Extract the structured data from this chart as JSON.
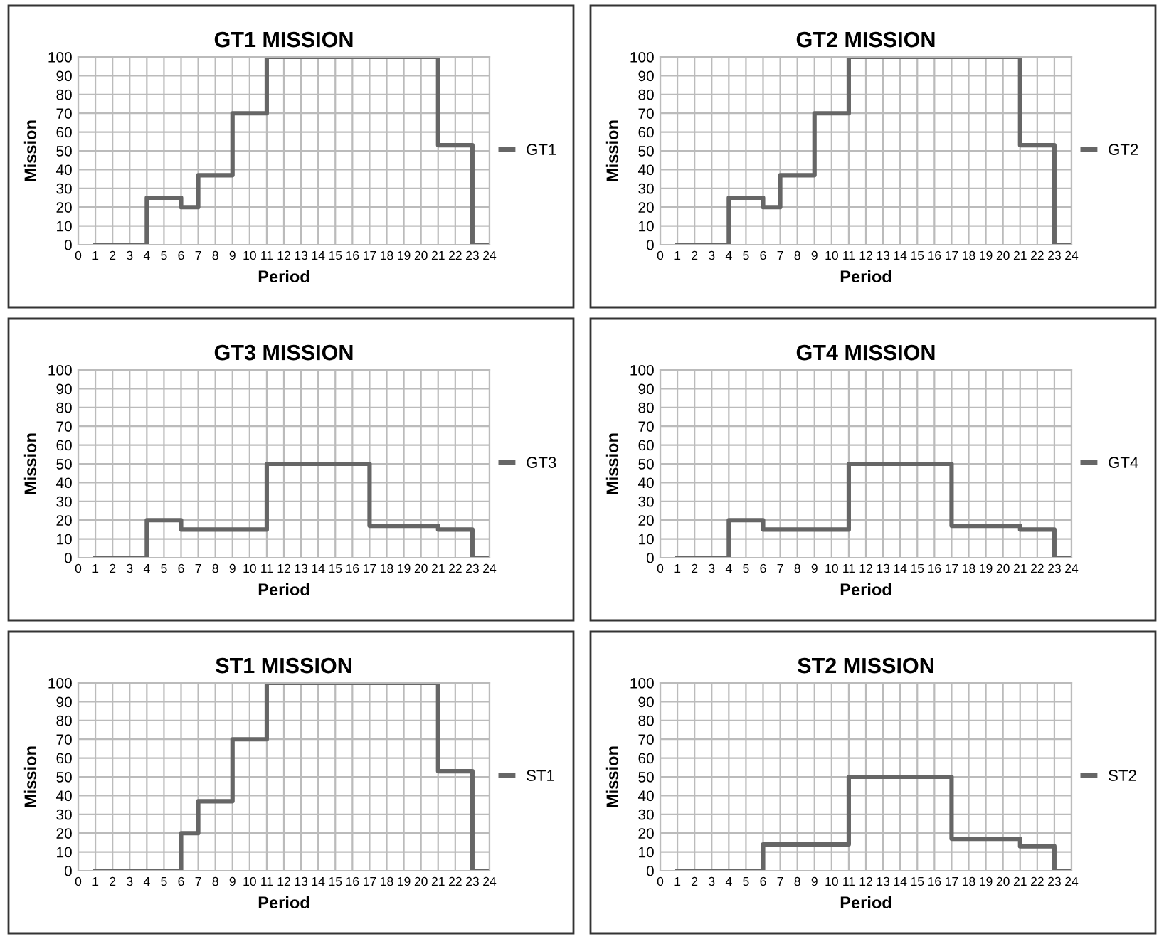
{
  "chart_data": [
    {
      "type": "step",
      "title": "GT1 MISSION",
      "xlabel": "Period",
      "ylabel": "Mission",
      "xlim": [
        0,
        24
      ],
      "xticks": [
        0,
        1,
        2,
        3,
        4,
        5,
        6,
        7,
        8,
        9,
        10,
        11,
        12,
        13,
        14,
        15,
        16,
        17,
        18,
        19,
        20,
        21,
        22,
        23,
        24
      ],
      "ylim": [
        0,
        100
      ],
      "yticks": [
        0,
        10,
        20,
        30,
        40,
        50,
        60,
        70,
        80,
        90,
        100
      ],
      "grid": true,
      "legend": "right",
      "x": [
        1,
        2,
        3,
        4,
        5,
        6,
        7,
        8,
        9,
        10,
        11,
        12,
        13,
        14,
        15,
        16,
        17,
        18,
        19,
        20,
        21,
        22,
        23,
        24
      ],
      "series": [
        {
          "name": "GT1",
          "color": "#666666",
          "values": [
            0,
            0,
            0,
            25,
            25,
            20,
            37,
            37,
            70,
            70,
            100,
            100,
            100,
            100,
            100,
            100,
            100,
            100,
            100,
            100,
            53,
            53,
            0,
            0
          ]
        }
      ]
    },
    {
      "type": "step",
      "title": "GT2 MISSION",
      "xlabel": "Period",
      "ylabel": "Mission",
      "xlim": [
        0,
        24
      ],
      "xticks": [
        0,
        1,
        2,
        3,
        4,
        5,
        6,
        7,
        8,
        9,
        10,
        11,
        12,
        13,
        14,
        15,
        16,
        17,
        18,
        19,
        20,
        21,
        22,
        23,
        24
      ],
      "ylim": [
        0,
        100
      ],
      "yticks": [
        0,
        10,
        20,
        30,
        40,
        50,
        60,
        70,
        80,
        90,
        100
      ],
      "grid": true,
      "legend": "right",
      "x": [
        1,
        2,
        3,
        4,
        5,
        6,
        7,
        8,
        9,
        10,
        11,
        12,
        13,
        14,
        15,
        16,
        17,
        18,
        19,
        20,
        21,
        22,
        23,
        24
      ],
      "series": [
        {
          "name": "GT2",
          "color": "#666666",
          "values": [
            0,
            0,
            0,
            25,
            25,
            20,
            37,
            37,
            70,
            70,
            100,
            100,
            100,
            100,
            100,
            100,
            100,
            100,
            100,
            100,
            53,
            53,
            0,
            0
          ]
        }
      ]
    },
    {
      "type": "step",
      "title": "GT3 MISSION",
      "xlabel": "Period",
      "ylabel": "Mission",
      "xlim": [
        0,
        24
      ],
      "xticks": [
        0,
        1,
        2,
        3,
        4,
        5,
        6,
        7,
        8,
        9,
        10,
        11,
        12,
        13,
        14,
        15,
        16,
        17,
        18,
        19,
        20,
        21,
        22,
        23,
        24
      ],
      "ylim": [
        0,
        100
      ],
      "yticks": [
        0,
        10,
        20,
        30,
        40,
        50,
        60,
        70,
        80,
        90,
        100
      ],
      "grid": true,
      "legend": "right",
      "x": [
        1,
        2,
        3,
        4,
        5,
        6,
        7,
        8,
        9,
        10,
        11,
        12,
        13,
        14,
        15,
        16,
        17,
        18,
        19,
        20,
        21,
        22,
        23,
        24
      ],
      "series": [
        {
          "name": "GT3",
          "color": "#666666",
          "values": [
            0,
            0,
            0,
            20,
            20,
            15,
            15,
            15,
            15,
            15,
            50,
            50,
            50,
            50,
            50,
            50,
            17,
            17,
            17,
            17,
            15,
            15,
            0,
            0
          ]
        }
      ]
    },
    {
      "type": "step",
      "title": "GT4 MISSION",
      "xlabel": "Period",
      "ylabel": "Mission",
      "xlim": [
        0,
        24
      ],
      "xticks": [
        0,
        1,
        2,
        3,
        4,
        5,
        6,
        7,
        8,
        9,
        10,
        11,
        12,
        13,
        14,
        15,
        16,
        17,
        18,
        19,
        20,
        21,
        22,
        23,
        24
      ],
      "ylim": [
        0,
        100
      ],
      "yticks": [
        0,
        10,
        20,
        30,
        40,
        50,
        60,
        70,
        80,
        90,
        100
      ],
      "grid": true,
      "legend": "right",
      "x": [
        1,
        2,
        3,
        4,
        5,
        6,
        7,
        8,
        9,
        10,
        11,
        12,
        13,
        14,
        15,
        16,
        17,
        18,
        19,
        20,
        21,
        22,
        23,
        24
      ],
      "series": [
        {
          "name": "GT4",
          "color": "#666666",
          "values": [
            0,
            0,
            0,
            20,
            20,
            15,
            15,
            15,
            15,
            15,
            50,
            50,
            50,
            50,
            50,
            50,
            17,
            17,
            17,
            17,
            15,
            15,
            0,
            0
          ]
        }
      ]
    },
    {
      "type": "step",
      "title": "ST1 MISSION",
      "xlabel": "Period",
      "ylabel": "Mission",
      "xlim": [
        0,
        24
      ],
      "xticks": [
        0,
        1,
        2,
        3,
        4,
        5,
        6,
        7,
        8,
        9,
        10,
        11,
        12,
        13,
        14,
        15,
        16,
        17,
        18,
        19,
        20,
        21,
        22,
        23,
        24
      ],
      "ylim": [
        0,
        100
      ],
      "yticks": [
        0,
        10,
        20,
        30,
        40,
        50,
        60,
        70,
        80,
        90,
        100
      ],
      "grid": true,
      "legend": "right",
      "x": [
        1,
        2,
        3,
        4,
        5,
        6,
        7,
        8,
        9,
        10,
        11,
        12,
        13,
        14,
        15,
        16,
        17,
        18,
        19,
        20,
        21,
        22,
        23,
        24
      ],
      "series": [
        {
          "name": "ST1",
          "color": "#666666",
          "values": [
            0,
            0,
            0,
            0,
            0,
            20,
            37,
            37,
            70,
            70,
            100,
            100,
            100,
            100,
            100,
            100,
            100,
            100,
            100,
            100,
            53,
            53,
            0,
            0
          ]
        }
      ]
    },
    {
      "type": "step",
      "title": "ST2 MISSION",
      "xlabel": "Period",
      "ylabel": "Mission",
      "xlim": [
        0,
        24
      ],
      "xticks": [
        0,
        1,
        2,
        3,
        4,
        5,
        6,
        7,
        8,
        9,
        10,
        11,
        12,
        13,
        14,
        15,
        16,
        17,
        18,
        19,
        20,
        21,
        22,
        23,
        24
      ],
      "ylim": [
        0,
        100
      ],
      "yticks": [
        0,
        10,
        20,
        30,
        40,
        50,
        60,
        70,
        80,
        90,
        100
      ],
      "grid": true,
      "legend": "right",
      "x": [
        1,
        2,
        3,
        4,
        5,
        6,
        7,
        8,
        9,
        10,
        11,
        12,
        13,
        14,
        15,
        16,
        17,
        18,
        19,
        20,
        21,
        22,
        23,
        24
      ],
      "series": [
        {
          "name": "ST2",
          "color": "#666666",
          "values": [
            0,
            0,
            0,
            0,
            0,
            14,
            14,
            14,
            14,
            14,
            50,
            50,
            50,
            50,
            50,
            50,
            17,
            17,
            17,
            17,
            13,
            13,
            0,
            0
          ]
        }
      ]
    }
  ]
}
